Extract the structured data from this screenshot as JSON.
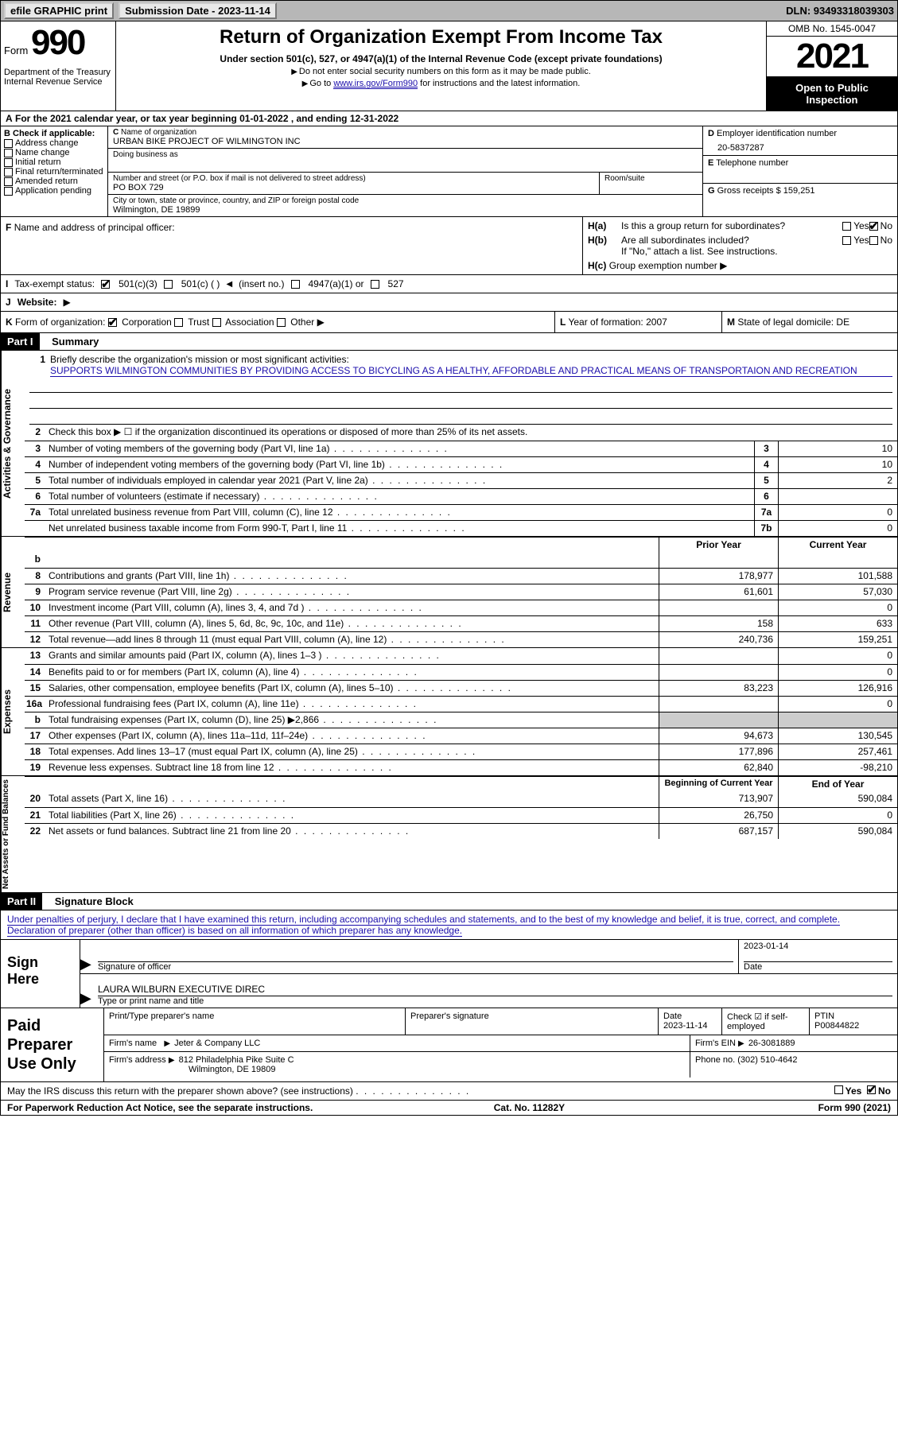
{
  "topbar": {
    "efile": "efile GRAPHIC print",
    "sub": "Submission Date - 2023-11-14",
    "dln": "DLN: 93493318039303"
  },
  "header": {
    "form": "Form",
    "num": "990",
    "dept": "Department of the Treasury",
    "irs": "Internal Revenue Service",
    "title": "Return of Organization Exempt From Income Tax",
    "sub1": "Under section 501(c), 527, or 4947(a)(1) of the Internal Revenue Code (except private foundations)",
    "sub2": "Do not enter social security numbers on this form as it may be made public.",
    "sub3_pre": "Go to ",
    "sub3_link": "www.irs.gov/Form990",
    "sub3_post": " for instructions and the latest information.",
    "omb": "OMB No. 1545-0047",
    "year": "2021",
    "otp": "Open to Public Inspection"
  },
  "rowA": {
    "text": "For the 2021 calendar year, or tax year beginning 01-01-2022   , and ending 12-31-2022",
    "A": "A"
  },
  "B": {
    "label": "Check if applicable:",
    "B": "B",
    "addr": "Address change",
    "name": "Name change",
    "init": "Initial return",
    "final": "Final return/terminated",
    "amend": "Amended return",
    "app": "Application pending"
  },
  "C": {
    "name_lbl": "Name of organization",
    "C": "C",
    "name": "URBAN BIKE PROJECT OF WILMINGTON INC",
    "dba_lbl": "Doing business as",
    "dba": "",
    "street_lbl": "Number and street (or P.O. box if mail is not delivered to street address)",
    "room_lbl": "Room/suite",
    "street": "PO BOX 729",
    "city_lbl": "City or town, state or province, country, and ZIP or foreign postal code",
    "city": "Wilmington, DE  19899"
  },
  "D": {
    "lbl": "Employer identification number",
    "D": "D",
    "val": "20-5837287"
  },
  "E": {
    "lbl": "Telephone number",
    "E": "E",
    "val": ""
  },
  "G": {
    "lbl": "Gross receipts $",
    "G": "G",
    "val": "159,251"
  },
  "F": {
    "lbl": "Name and address of principal officer:",
    "F": "F",
    "val": ""
  },
  "H": {
    "a": "Is this a group return for subordinates?",
    "ha": "H(a)",
    "a_yes": "Yes",
    "a_no": "No",
    "b": "Are all subordinates included?",
    "hb": "H(b)",
    "b2": "If \"No,\" attach a list. See instructions.",
    "c": "Group exemption number",
    "hc": "H(c)",
    "arrow": "▶"
  },
  "I": {
    "lbl": "Tax-exempt status:",
    "I": "I",
    "c3": "501(c)(3)",
    "c": "501(c) (  )",
    "ins": "(insert no.)",
    "a4947": "4947(a)(1) or",
    "s527": "527"
  },
  "J": {
    "lbl": "Website:",
    "J": "J",
    "arrow": "▶"
  },
  "K": {
    "lbl": "Form of organization:",
    "K": "K",
    "corp": "Corporation",
    "trust": "Trust",
    "assoc": "Association",
    "other": "Other",
    "arrow": "▶"
  },
  "L": {
    "lbl": "Year of formation:",
    "L": "L",
    "val": "2007"
  },
  "M": {
    "lbl": "State of legal domicile:",
    "M": "M",
    "val": "DE"
  },
  "part1": {
    "bar": "Part I",
    "title": "Summary"
  },
  "mission": {
    "n": "1",
    "lbl": "Briefly describe the organization's mission or most significant activities:",
    "text": "SUPPORTS WILMINGTON COMMUNITIES BY PROVIDING ACCESS TO BICYCLING AS A HEALTHY, AFFORDABLE AND PRACTICAL MEANS OF TRANSPORTAION AND RECREATION"
  },
  "vtabs": {
    "ag": "Activities & Governance",
    "rev": "Revenue",
    "exp": "Expenses",
    "na": "Net Assets or\nFund Balances"
  },
  "lines_ag": [
    {
      "n": "2",
      "t": "Check this box ▶ ☐  if the organization discontinued its operations or disposed of more than 25% of its net assets.",
      "box": "",
      "v1": "",
      "nobox": true
    },
    {
      "n": "3",
      "t": "Number of voting members of the governing body (Part VI, line 1a)",
      "box": "3",
      "v": "10"
    },
    {
      "n": "4",
      "t": "Number of independent voting members of the governing body (Part VI, line 1b)",
      "box": "4",
      "v": "10"
    },
    {
      "n": "5",
      "t": "Total number of individuals employed in calendar year 2021 (Part V, line 2a)",
      "box": "5",
      "v": "2"
    },
    {
      "n": "6",
      "t": "Total number of volunteers (estimate if necessary)",
      "box": "6",
      "v": ""
    },
    {
      "n": "7a",
      "t": "Total unrelated business revenue from Part VIII, column (C), line 12",
      "box": "7a",
      "v": "0"
    },
    {
      "n": "",
      "t": "Net unrelated business taxable income from Form 990-T, Part I, line 11",
      "box": "7b",
      "v": "0"
    }
  ],
  "twoHead": {
    "h1": "Prior Year",
    "h2": "Current Year"
  },
  "lines_rev": [
    {
      "n": "b",
      "t": "",
      "v1": "",
      "v2": "",
      "blankrow": true
    },
    {
      "n": "8",
      "t": "Contributions and grants (Part VIII, line 1h)",
      "v1": "178,977",
      "v2": "101,588"
    },
    {
      "n": "9",
      "t": "Program service revenue (Part VIII, line 2g)",
      "v1": "61,601",
      "v2": "57,030"
    },
    {
      "n": "10",
      "t": "Investment income (Part VIII, column (A), lines 3, 4, and 7d )",
      "v1": "",
      "v2": "0"
    },
    {
      "n": "11",
      "t": "Other revenue (Part VIII, column (A), lines 5, 6d, 8c, 9c, 10c, and 11e)",
      "v1": "158",
      "v2": "633"
    },
    {
      "n": "12",
      "t": "Total revenue—add lines 8 through 11 (must equal Part VIII, column (A), line 12)",
      "v1": "240,736",
      "v2": "159,251"
    }
  ],
  "lines_exp": [
    {
      "n": "13",
      "t": "Grants and similar amounts paid (Part IX, column (A), lines 1–3 )",
      "v1": "",
      "v2": "0"
    },
    {
      "n": "14",
      "t": "Benefits paid to or for members (Part IX, column (A), line 4)",
      "v1": "",
      "v2": "0"
    },
    {
      "n": "15",
      "t": "Salaries, other compensation, employee benefits (Part IX, column (A), lines 5–10)",
      "v1": "83,223",
      "v2": "126,916"
    },
    {
      "n": "16a",
      "t": "Professional fundraising fees (Part IX, column (A), line 11e)",
      "v1": "",
      "v2": "0"
    },
    {
      "n": "b",
      "t": "Total fundraising expenses (Part IX, column (D), line 25) ▶2,866",
      "v1": "",
      "v2": "",
      "gray": true
    },
    {
      "n": "17",
      "t": "Other expenses (Part IX, column (A), lines 11a–11d, 11f–24e)",
      "v1": "94,673",
      "v2": "130,545"
    },
    {
      "n": "18",
      "t": "Total expenses. Add lines 13–17 (must equal Part IX, column (A), line 25)",
      "v1": "177,896",
      "v2": "257,461"
    },
    {
      "n": "19",
      "t": "Revenue less expenses. Subtract line 18 from line 12",
      "v1": "62,840",
      "v2": "-98,210"
    }
  ],
  "twoHead2": {
    "h1": "Beginning of Current Year",
    "h2": "End of Year"
  },
  "lines_na": [
    {
      "n": "20",
      "t": "Total assets (Part X, line 16)",
      "v1": "713,907",
      "v2": "590,084"
    },
    {
      "n": "21",
      "t": "Total liabilities (Part X, line 26)",
      "v1": "26,750",
      "v2": "0"
    },
    {
      "n": "22",
      "t": "Net assets or fund balances. Subtract line 21 from line 20",
      "v1": "687,157",
      "v2": "590,084"
    }
  ],
  "part2": {
    "bar": "Part II",
    "title": "Signature Block"
  },
  "sig": {
    "decl": "Under penalties of perjury, I declare that I have examined this return, including accompanying schedules and statements, and to the best of my knowledge and belief, it is true, correct, and complete. Declaration of preparer (other than officer) is based on all information of which preparer has any knowledge.",
    "here": "Sign Here",
    "off": "Signature of officer",
    "date": "Date",
    "dateval": "2023-01-14",
    "typed": "LAURA WILBURN  EXECUTIVE DIREC",
    "typed_lbl": "Type or print name and title"
  },
  "prep": {
    "label": "Paid Preparer Use Only",
    "h1": "Print/Type preparer's name",
    "h2": "Preparer's signature",
    "h3": "Date",
    "h3v": "2023-11-14",
    "h4": "Check ☑ if self-employed",
    "h5": "PTIN",
    "h5v": "P00844822",
    "firm_lbl": "Firm's name",
    "firm": "Jeter & Company LLC",
    "ein_lbl": "Firm's EIN",
    "ein": "26-3081889",
    "addr_lbl": "Firm's address",
    "addr": "812 Philadelphia Pike Suite C",
    "addr2": "Wilmington, DE  19809",
    "ph_lbl": "Phone no.",
    "ph": "(302) 510-4642"
  },
  "may": {
    "text": "May the IRS discuss this return with the preparer shown above? (see instructions)",
    "yes": "Yes",
    "no": "No"
  },
  "footer": {
    "l": "For Paperwork Reduction Act Notice, see the separate instructions.",
    "c": "Cat. No. 11282Y",
    "r": "Form 990 (2021)"
  }
}
